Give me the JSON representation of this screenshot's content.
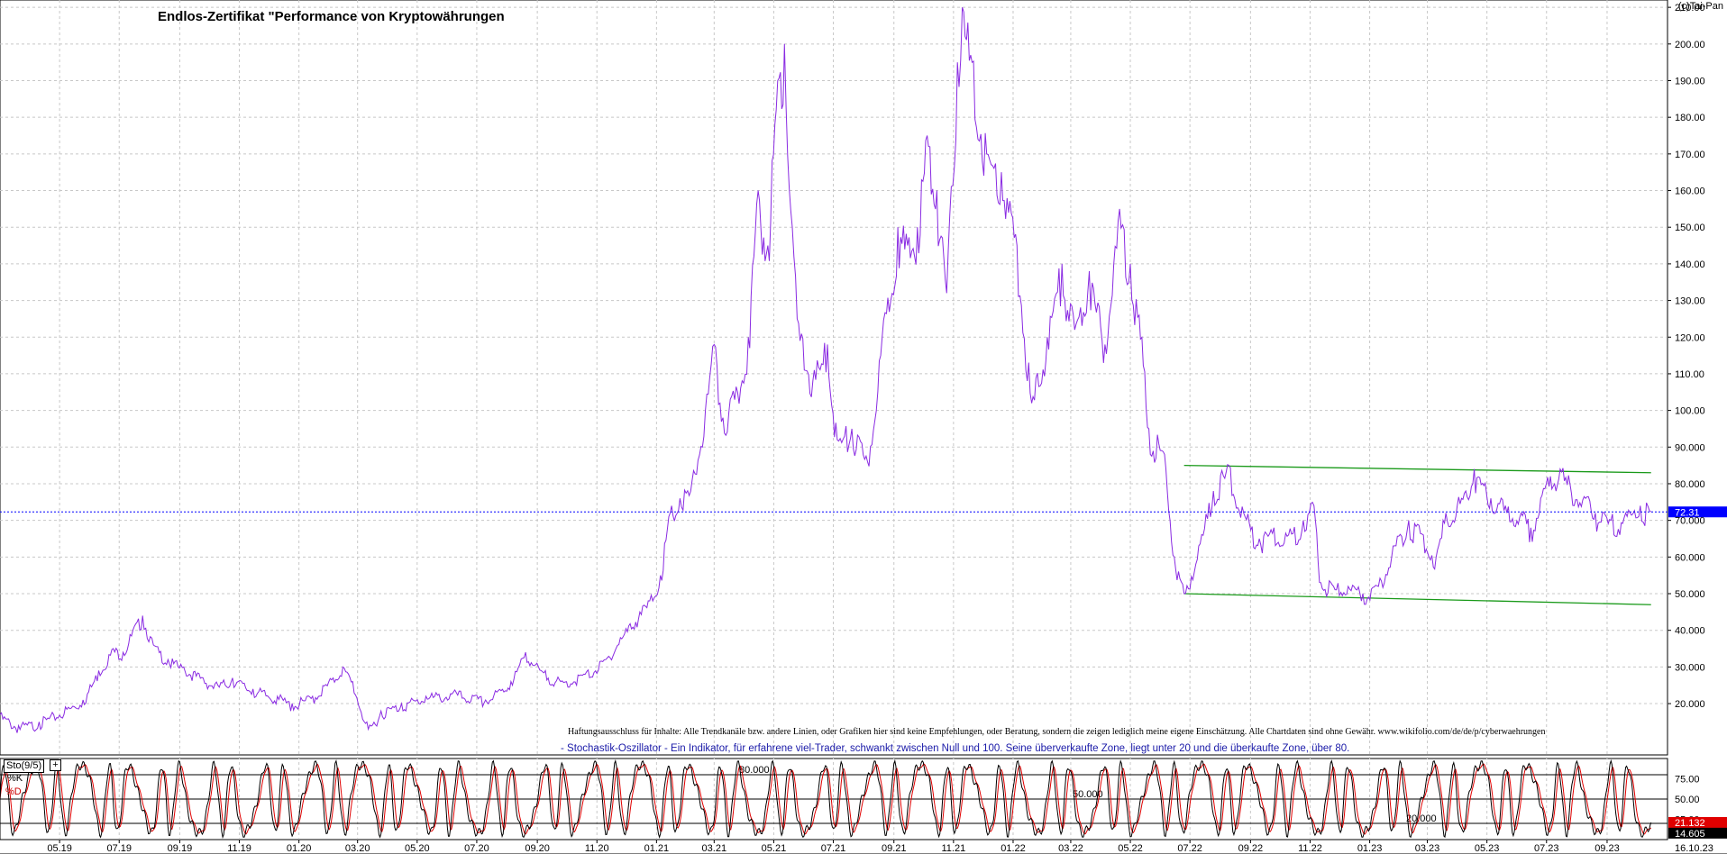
{
  "header": {
    "title": "Endlos-Zertifikat \"Performance von Kryptowährungen",
    "brand": "(c)Tai-Pan"
  },
  "disclaimer": "Haftungsausschluss für Inhalte: Alle Trendkanäle bzw. andere Linien, oder Grafiken hier sind keine Empfehlungen, oder Beratung, sondern die zeigen lediglich meine eigene Einschätzung. Alle Chartdaten sind ohne Gewähr.  www.wikifolio.com/de/de/p/cyberwaehrungen",
  "stochastic_description": "- Stochastik-Oszillator - Ein Indikator, für erfahrene viel-Trader, schwankt zwischen Null und 100. Seine überverkaufte Zone, liegt unter 20 und die überkaufte Zone, über 80.",
  "indicator": {
    "name": "Sto(9/5)",
    "k_label": "%K",
    "d_label": "%D",
    "levels_text": [
      "80.000",
      "50.000",
      "20.000"
    ],
    "last_k": "21.132",
    "last_d": "14.605"
  },
  "colors": {
    "price_line": "#8a2be2",
    "channel_line": "#1a9a1a",
    "current_price_line": "#0000ff",
    "stoch_k": "#000000",
    "stoch_d": "#e00000",
    "grid": "#c8c8c8"
  },
  "chart_data": [
    {
      "type": "line",
      "title": "Endlos-Zertifikat \"Performance von Kryptowährungen",
      "x_tick_labels": [
        "05.19",
        "07.19",
        "09.19",
        "11.19",
        "01.20",
        "03.20",
        "05.20",
        "07.20",
        "09.20",
        "11.20",
        "01.21",
        "03.21",
        "05.21",
        "07.21",
        "09.21",
        "11.21",
        "01.22",
        "03.22",
        "05.22",
        "07.22",
        "09.22",
        "11.22",
        "01.23",
        "03.23",
        "05.23",
        "07.23",
        "09.23"
      ],
      "x_end_label": "16.10.23",
      "y_ticks": [
        20,
        30,
        40,
        50,
        60,
        70,
        80,
        90,
        100,
        110,
        120,
        130,
        140,
        150,
        160,
        170,
        180,
        190,
        200,
        210
      ],
      "y_tick_labels": [
        "20.000",
        "30.000",
        "40.000",
        "50.000",
        "60.000",
        "70.000",
        "80.000",
        "90.000",
        "100.00",
        "110.00",
        "120.00",
        "130.00",
        "140.00",
        "150.00",
        "160.00",
        "170.00",
        "180.00",
        "190.00",
        "200.00",
        "210.00"
      ],
      "ylim": [
        6,
        212
      ],
      "grid": true,
      "current_value": 72.31,
      "current_value_label": "72.31",
      "series": [
        {
          "values": [
            [
              "2019-03-01",
              17
            ],
            [
              "2019-03-20",
              14
            ],
            [
              "2019-04-10",
              15
            ],
            [
              "2019-04-25",
              17
            ],
            [
              "2019-05-10",
              19
            ],
            [
              "2019-05-25",
              21
            ],
            [
              "2019-06-10",
              29
            ],
            [
              "2019-06-25",
              35
            ],
            [
              "2019-07-05",
              34
            ],
            [
              "2019-07-15",
              40
            ],
            [
              "2019-07-25",
              44
            ],
            [
              "2019-08-05",
              36
            ],
            [
              "2019-08-20",
              32
            ],
            [
              "2019-09-05",
              30
            ],
            [
              "2019-09-25",
              27
            ],
            [
              "2019-10-10",
              25
            ],
            [
              "2019-10-25",
              27
            ],
            [
              "2019-11-15",
              24
            ],
            [
              "2019-12-10",
              22
            ],
            [
              "2019-12-25",
              20
            ],
            [
              "2020-01-15",
              22
            ],
            [
              "2020-02-05",
              27
            ],
            [
              "2020-02-15",
              30
            ],
            [
              "2020-02-25",
              26
            ],
            [
              "2020-03-12",
              13
            ],
            [
              "2020-03-25",
              18
            ],
            [
              "2020-04-15",
              20
            ],
            [
              "2020-05-10",
              22
            ],
            [
              "2020-06-10",
              23
            ],
            [
              "2020-07-10",
              21
            ],
            [
              "2020-08-05",
              26
            ],
            [
              "2020-08-20",
              34
            ],
            [
              "2020-09-05",
              29
            ],
            [
              "2020-09-25",
              26
            ],
            [
              "2020-10-20",
              28
            ],
            [
              "2020-11-10",
              32
            ],
            [
              "2020-11-25",
              38
            ],
            [
              "2020-12-15",
              45
            ],
            [
              "2020-12-25",
              48
            ],
            [
              "2021-01-05",
              55
            ],
            [
              "2021-01-15",
              72
            ],
            [
              "2021-01-25",
              76
            ],
            [
              "2021-02-05",
              78
            ],
            [
              "2021-02-20",
              100
            ],
            [
              "2021-03-01",
              118
            ],
            [
              "2021-03-10",
              98
            ],
            [
              "2021-03-25",
              105
            ],
            [
              "2021-04-05",
              120
            ],
            [
              "2021-04-15",
              160
            ],
            [
              "2021-04-25",
              145
            ],
            [
              "2021-05-05",
              190
            ],
            [
              "2021-05-12",
              200
            ],
            [
              "2021-05-20",
              150
            ],
            [
              "2021-05-25",
              125
            ],
            [
              "2021-06-10",
              108
            ],
            [
              "2021-06-25",
              118
            ],
            [
              "2021-07-05",
              92
            ],
            [
              "2021-07-20",
              95
            ],
            [
              "2021-08-05",
              86
            ],
            [
              "2021-08-20",
              120
            ],
            [
              "2021-09-05",
              150
            ],
            [
              "2021-09-15",
              145
            ],
            [
              "2021-09-25",
              150
            ],
            [
              "2021-10-05",
              175
            ],
            [
              "2021-10-15",
              160
            ],
            [
              "2021-10-25",
              132
            ],
            [
              "2021-11-05",
              195
            ],
            [
              "2021-11-10",
              210
            ],
            [
              "2021-11-20",
              195
            ],
            [
              "2021-12-05",
              170
            ],
            [
              "2021-12-20",
              165
            ],
            [
              "2022-01-05",
              145
            ],
            [
              "2022-01-20",
              102
            ],
            [
              "2022-02-05",
              120
            ],
            [
              "2022-02-20",
              140
            ],
            [
              "2022-03-05",
              122
            ],
            [
              "2022-03-20",
              138
            ],
            [
              "2022-04-05",
              118
            ],
            [
              "2022-04-20",
              155
            ],
            [
              "2022-05-01",
              140
            ],
            [
              "2022-05-10",
              126
            ],
            [
              "2022-05-20",
              95
            ],
            [
              "2022-06-05",
              88
            ],
            [
              "2022-06-15",
              60
            ],
            [
              "2022-06-25",
              50
            ],
            [
              "2022-07-10",
              63
            ],
            [
              "2022-07-25",
              78
            ],
            [
              "2022-08-10",
              85
            ],
            [
              "2022-08-25",
              72
            ],
            [
              "2022-09-10",
              65
            ],
            [
              "2022-09-25",
              68
            ],
            [
              "2022-10-10",
              66
            ],
            [
              "2022-10-25",
              70
            ],
            [
              "2022-11-05",
              74
            ],
            [
              "2022-11-12",
              53
            ],
            [
              "2022-11-25",
              52
            ],
            [
              "2022-12-10",
              52
            ],
            [
              "2022-12-25",
              50
            ],
            [
              "2023-01-10",
              52
            ],
            [
              "2023-01-25",
              63
            ],
            [
              "2023-02-10",
              70
            ],
            [
              "2023-02-25",
              66
            ],
            [
              "2023-03-10",
              60
            ],
            [
              "2023-03-20",
              72
            ],
            [
              "2023-04-05",
              76
            ],
            [
              "2023-04-18",
              84
            ],
            [
              "2023-05-05",
              76
            ],
            [
              "2023-05-20",
              74
            ],
            [
              "2023-06-05",
              72
            ],
            [
              "2023-06-15",
              68
            ],
            [
              "2023-06-25",
              76
            ],
            [
              "2023-07-05",
              82
            ],
            [
              "2023-07-15",
              84
            ],
            [
              "2023-07-25",
              80
            ],
            [
              "2023-08-10",
              76
            ],
            [
              "2023-08-20",
              72
            ],
            [
              "2023-09-05",
              70
            ],
            [
              "2023-09-20",
              72
            ],
            [
              "2023-10-05",
              74
            ],
            [
              "2023-10-16",
              72.31
            ]
          ]
        }
      ],
      "trend_channel": {
        "upper": [
          [
            "2022-06-25",
            85
          ],
          [
            "2023-10-16",
            83
          ]
        ],
        "lower": [
          [
            "2022-06-25",
            50
          ],
          [
            "2023-10-16",
            47
          ]
        ]
      }
    },
    {
      "type": "line",
      "title": "Sto(9/5)",
      "y_ticks": [
        25,
        50,
        75
      ],
      "y_tick_labels": [
        "25.00",
        "50.00",
        "75.00"
      ],
      "levels": [
        20,
        50,
        80
      ],
      "ylim": [
        0,
        100
      ],
      "series": [
        {
          "name": "%K",
          "last_value": 21.132,
          "cycle_period_days": 26,
          "oscillation_range": [
            5,
            95
          ]
        },
        {
          "name": "%D",
          "last_value": 14.605,
          "smoothing": 5
        }
      ]
    }
  ]
}
